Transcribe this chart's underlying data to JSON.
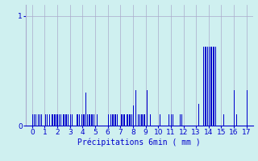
{
  "title": "",
  "xlabel": "Précipitations 6min ( mm )",
  "ylabel": "",
  "background_color": "#cff0f0",
  "bar_color": "#0000cc",
  "xlim": [
    -0.5,
    17.5
  ],
  "ylim": [
    0,
    1.1
  ],
  "yticks": [
    0,
    1
  ],
  "xticks": [
    0,
    1,
    2,
    3,
    4,
    5,
    6,
    7,
    8,
    9,
    10,
    11,
    12,
    13,
    14,
    15,
    16,
    17
  ],
  "grid_color": "#aaaacc",
  "bar_positions": [
    0.05,
    0.15,
    0.3,
    0.5,
    0.6,
    0.75,
    1.05,
    1.2,
    1.4,
    1.55,
    1.65,
    1.75,
    1.85,
    1.95,
    2.05,
    2.15,
    2.3,
    2.45,
    2.55,
    2.65,
    2.75,
    2.85,
    2.95,
    3.05,
    3.2,
    3.4,
    3.55,
    3.65,
    3.75,
    3.85,
    3.95,
    4.05,
    4.15,
    4.25,
    4.4,
    4.5,
    4.6,
    4.7,
    4.8,
    4.9,
    5.15,
    5.25,
    6.05,
    6.15,
    6.25,
    6.35,
    6.45,
    6.55,
    6.65,
    6.75,
    7.05,
    7.15,
    7.25,
    7.35,
    7.5,
    7.6,
    7.7,
    7.8,
    7.9,
    8.05,
    8.2,
    8.4,
    8.55,
    8.65,
    8.75,
    8.85,
    8.95,
    9.1,
    9.4,
    9.6,
    10.05,
    10.15,
    10.75,
    10.85,
    11.05,
    11.15,
    11.75,
    11.85,
    13.05,
    13.2,
    13.5,
    13.6,
    13.7,
    13.8,
    13.9,
    14.05,
    14.15,
    14.25,
    14.35,
    14.45,
    14.55,
    14.65,
    15.2,
    15.8,
    16.05,
    16.2,
    17.05
  ],
  "bar_heights": [
    0.1,
    0.1,
    0.1,
    0.1,
    0.1,
    0.1,
    0.1,
    0.1,
    0.1,
    0.1,
    0.1,
    0.1,
    0.1,
    0.1,
    0.1,
    0.1,
    0.1,
    0.1,
    0.1,
    0.1,
    0.1,
    0.1,
    0.1,
    0.1,
    0.1,
    0.1,
    0.1,
    0.1,
    0.1,
    0.1,
    0.1,
    0.1,
    0.1,
    0.3,
    0.1,
    0.1,
    0.1,
    0.1,
    0.1,
    0.1,
    0.1,
    0.1,
    0.1,
    0.1,
    0.1,
    0.1,
    0.1,
    0.1,
    0.1,
    0.1,
    0.1,
    0.1,
    0.1,
    0.1,
    0.1,
    0.1,
    0.1,
    0.1,
    0.1,
    0.18,
    0.32,
    0.1,
    0.1,
    0.1,
    0.1,
    0.1,
    0.1,
    0.32,
    0.1,
    0.32,
    0.1,
    0.1,
    0.1,
    0.1,
    0.1,
    0.1,
    0.1,
    0.1,
    0.2,
    0.2,
    0.2,
    0.72,
    0.72,
    0.72,
    0.72,
    0.72,
    0.72,
    0.72,
    0.72,
    0.72,
    0.72,
    0.38,
    0.1,
    0.1,
    0.32,
    0.1,
    0.32
  ],
  "bar_width": 0.055
}
